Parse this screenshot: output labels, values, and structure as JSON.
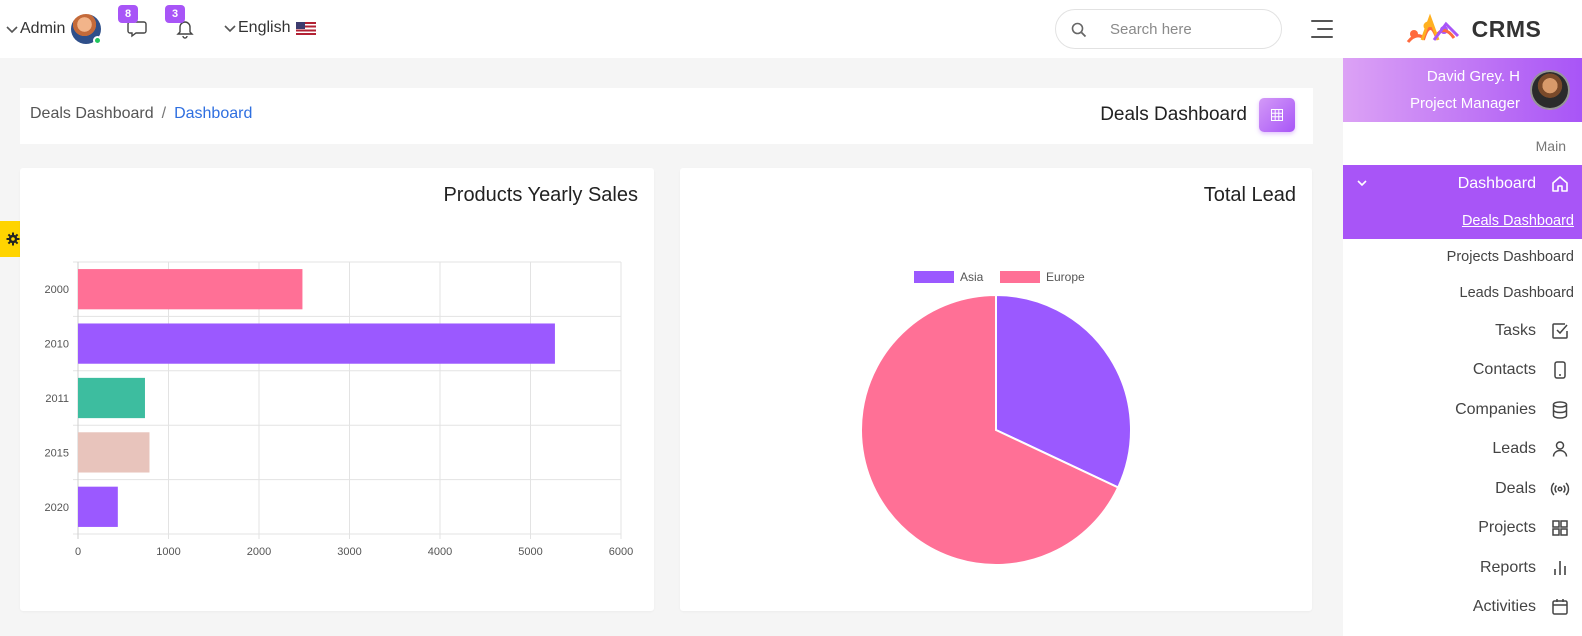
{
  "header": {
    "user_label": "Admin",
    "messages_count": "8",
    "notifications_count": "3",
    "language": "English",
    "search_placeholder": "Search here"
  },
  "brand": {
    "name": "CRMS"
  },
  "profile": {
    "name": "David Grey. H",
    "role": "Project Manager"
  },
  "sidebar": {
    "section_label": "Main",
    "active_item": "Dashboard",
    "submenu": [
      {
        "label": "Deals Dashboard",
        "active": true
      },
      {
        "label": "Projects Dashboard",
        "active": false
      },
      {
        "label": "Leads Dashboard",
        "active": false
      }
    ],
    "items": [
      {
        "label": "Tasks",
        "icon": "checkbox-icon"
      },
      {
        "label": "Contacts",
        "icon": "mobile-icon"
      },
      {
        "label": "Companies",
        "icon": "database-icon"
      },
      {
        "label": "Leads",
        "icon": "user-icon"
      },
      {
        "label": "Deals",
        "icon": "broadcast-icon"
      },
      {
        "label": "Projects",
        "icon": "grid-icon"
      },
      {
        "label": "Reports",
        "icon": "bar-chart-icon"
      },
      {
        "label": "Activities",
        "icon": "calendar-icon"
      }
    ]
  },
  "breadcrumb": {
    "parent": "Deals Dashboard",
    "separator": "/",
    "current": "Dashboard"
  },
  "page": {
    "title": "Deals Dashboard"
  },
  "colors": {
    "accent": "#a855f7",
    "pink": "#ff7096",
    "teal": "#3dbd9f",
    "beige": "#e8c4bc",
    "link": "#2f6fe0",
    "settings": "#ffd400"
  },
  "chart_data": [
    {
      "type": "bar",
      "orientation": "horizontal",
      "title": "Products Yearly Sales",
      "categories": [
        "2000",
        "2010",
        "2011",
        "2015",
        "2020"
      ],
      "values": [
        2480,
        5270,
        740,
        790,
        440
      ],
      "colors": [
        "#ff7096",
        "#9b59ff",
        "#3dbd9f",
        "#e8c4bc",
        "#9b59ff"
      ],
      "xlim": [
        0,
        6000
      ],
      "xticks": [
        0,
        1000,
        2000,
        3000,
        4000,
        5000,
        6000
      ],
      "grid": true
    },
    {
      "type": "pie",
      "title": "Total Lead",
      "labels": [
        "Asia",
        "Europe"
      ],
      "values": [
        32,
        68
      ],
      "colors": [
        "#9b59ff",
        "#ff7096"
      ],
      "legend": "top-center"
    }
  ]
}
